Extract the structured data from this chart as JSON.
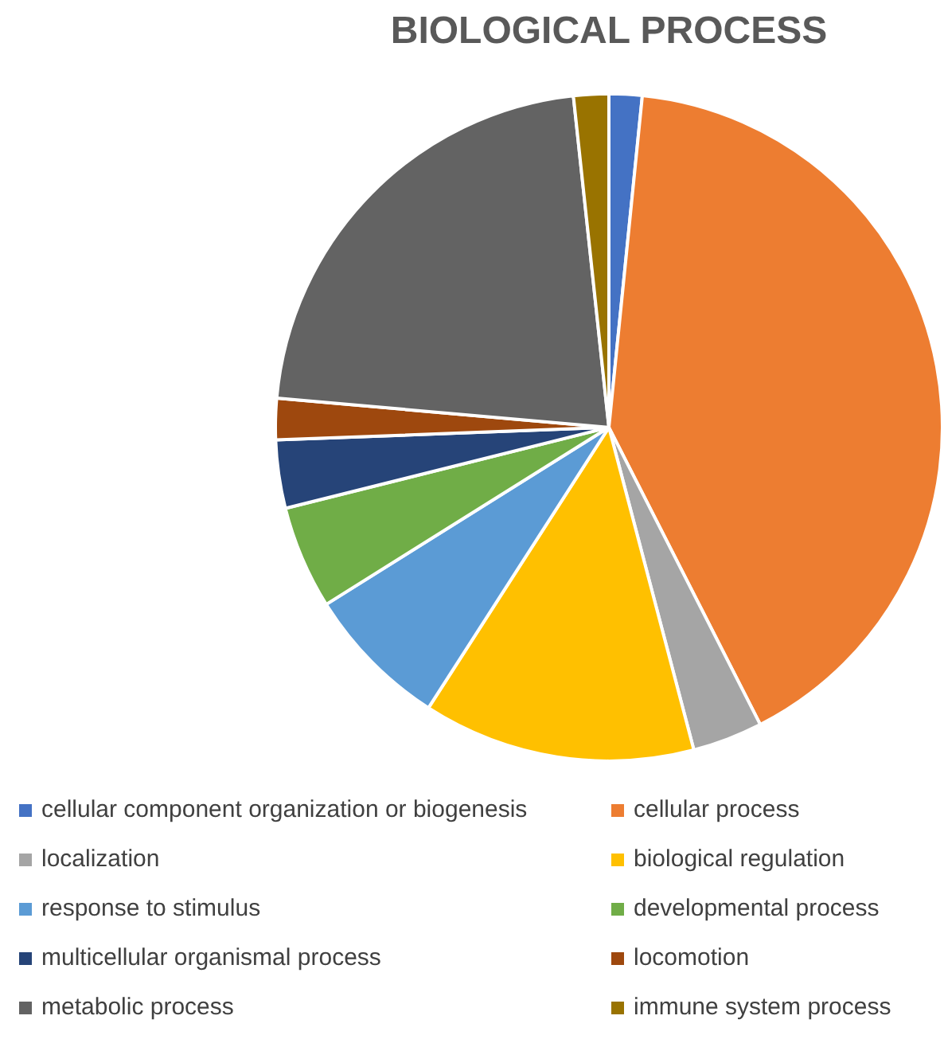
{
  "chart_data": {
    "type": "pie",
    "title": "BIOLOGICAL PROCESS",
    "categories": [
      "cellular component organization or biogenesis",
      "cellular process",
      "localization",
      "biological regulation",
      "response to stimulus",
      "developmental process",
      "multicellular organismal process",
      "locomotion",
      "metabolic process",
      "immune system process"
    ],
    "values": [
      1.6,
      40.9,
      3.4,
      13.2,
      7,
      5,
      3.3,
      2,
      21.9,
      1.7
    ],
    "colors": [
      "#4472c4",
      "#ed7d31",
      "#a5a5a5",
      "#ffc000",
      "#5b9bd5",
      "#70ad47",
      "#264478",
      "#9e480e",
      "#636363",
      "#997300"
    ],
    "legend": "bottom"
  }
}
